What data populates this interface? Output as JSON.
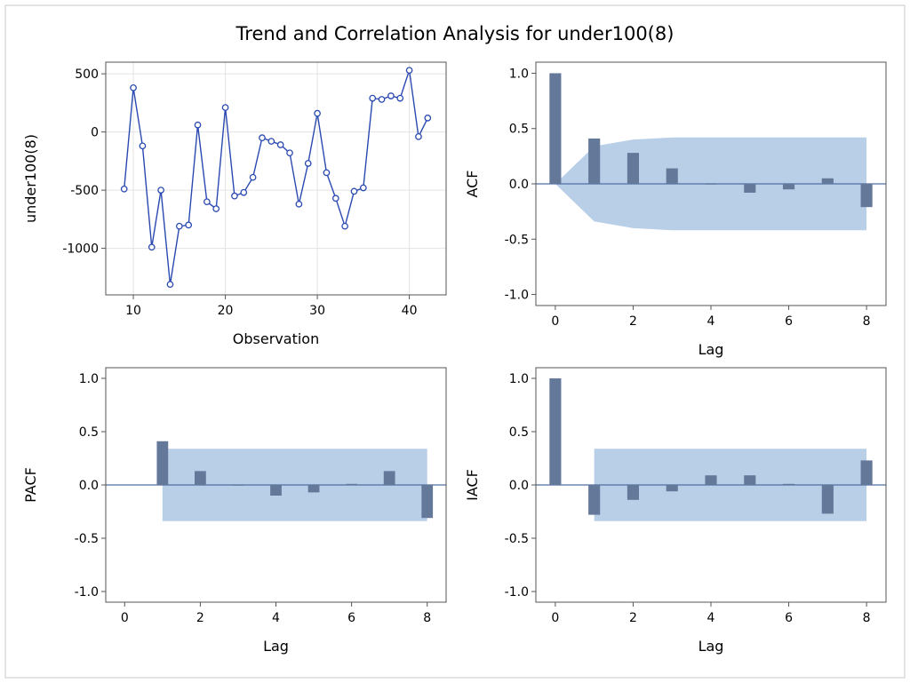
{
  "title": "Trend and Correlation Analysis for under100(8)",
  "colors": {
    "line": "#2a49b0",
    "band": "#b9cfe8",
    "bar": "#64789a",
    "axis": "#555555",
    "grid": "#e3e3e3",
    "zero": "#4f6ea3"
  },
  "chart_data": [
    {
      "type": "line",
      "name": "trend",
      "xlabel": "Observation",
      "ylabel": "under100(8)",
      "xlim": [
        7,
        44
      ],
      "ylim": [
        -1400,
        600
      ],
      "xticks": [
        10,
        20,
        30,
        40
      ],
      "yticks": [
        500,
        0,
        -500,
        -1000
      ],
      "grid": true,
      "marker": "circle",
      "x": [
        9,
        10,
        11,
        12,
        13,
        14,
        15,
        16,
        17,
        18,
        19,
        20,
        21,
        22,
        23,
        24,
        25,
        26,
        27,
        28,
        29,
        30,
        31,
        32,
        33,
        34,
        35,
        36,
        37,
        38,
        39,
        40,
        41,
        42
      ],
      "y": [
        -490,
        380,
        -120,
        -990,
        -500,
        -1310,
        -810,
        -800,
        60,
        -600,
        -660,
        210,
        -550,
        -520,
        -390,
        -50,
        -80,
        -110,
        -180,
        -620,
        -270,
        160,
        -350,
        -570,
        -810,
        -510,
        -480,
        290,
        280,
        310,
        290,
        530,
        -40,
        120
      ]
    },
    {
      "type": "bar",
      "name": "acf",
      "xlabel": "Lag",
      "ylabel": "ACF",
      "xlim": [
        -0.5,
        8.5
      ],
      "ylim": [
        -1.1,
        1.1
      ],
      "xticks": [
        0,
        2,
        4,
        6,
        8
      ],
      "yticks": [
        1.0,
        0.5,
        0.0,
        -0.5,
        -1.0
      ],
      "x": [
        0,
        1,
        2,
        3,
        4,
        5,
        6,
        7,
        8
      ],
      "values": [
        1.0,
        0.41,
        0.28,
        0.14,
        0.0,
        -0.08,
        -0.05,
        0.05,
        -0.21
      ],
      "confidence_band": [
        {
          "lag": 0,
          "upper": 0.0,
          "lower": 0.0
        },
        {
          "lag": 1,
          "upper": 0.34,
          "lower": -0.34
        },
        {
          "lag": 2,
          "upper": 0.4,
          "lower": -0.4
        },
        {
          "lag": 3,
          "upper": 0.42,
          "lower": -0.42
        },
        {
          "lag": 4,
          "upper": 0.42,
          "lower": -0.42
        },
        {
          "lag": 5,
          "upper": 0.42,
          "lower": -0.42
        },
        {
          "lag": 6,
          "upper": 0.42,
          "lower": -0.42
        },
        {
          "lag": 7,
          "upper": 0.42,
          "lower": -0.42
        },
        {
          "lag": 8,
          "upper": 0.42,
          "lower": -0.42
        }
      ]
    },
    {
      "type": "bar",
      "name": "pacf",
      "xlabel": "Lag",
      "ylabel": "PACF",
      "xlim": [
        -0.5,
        8.5
      ],
      "ylim": [
        -1.1,
        1.1
      ],
      "xticks": [
        0,
        2,
        4,
        6,
        8
      ],
      "yticks": [
        1.0,
        0.5,
        0.0,
        -0.5,
        -1.0
      ],
      "x": [
        1,
        2,
        3,
        4,
        5,
        6,
        7,
        8
      ],
      "values": [
        0.41,
        0.13,
        0.0,
        -0.1,
        -0.07,
        0.01,
        0.13,
        -0.31
      ],
      "confidence_band": [
        {
          "lag": 1,
          "upper": 0.34,
          "lower": -0.34
        },
        {
          "lag": 8,
          "upper": 0.34,
          "lower": -0.34
        }
      ]
    },
    {
      "type": "bar",
      "name": "iacf",
      "xlabel": "Lag",
      "ylabel": "IACF",
      "xlim": [
        -0.5,
        8.5
      ],
      "ylim": [
        -1.1,
        1.1
      ],
      "xticks": [
        0,
        2,
        4,
        6,
        8
      ],
      "yticks": [
        1.0,
        0.5,
        0.0,
        -0.5,
        -1.0
      ],
      "x": [
        0,
        1,
        2,
        3,
        4,
        5,
        6,
        7,
        8
      ],
      "values": [
        1.0,
        -0.28,
        -0.14,
        -0.06,
        0.09,
        0.09,
        0.01,
        -0.27,
        0.23
      ],
      "confidence_band": [
        {
          "lag": 1,
          "upper": 0.34,
          "lower": -0.34
        },
        {
          "lag": 8,
          "upper": 0.34,
          "lower": -0.34
        }
      ]
    }
  ]
}
